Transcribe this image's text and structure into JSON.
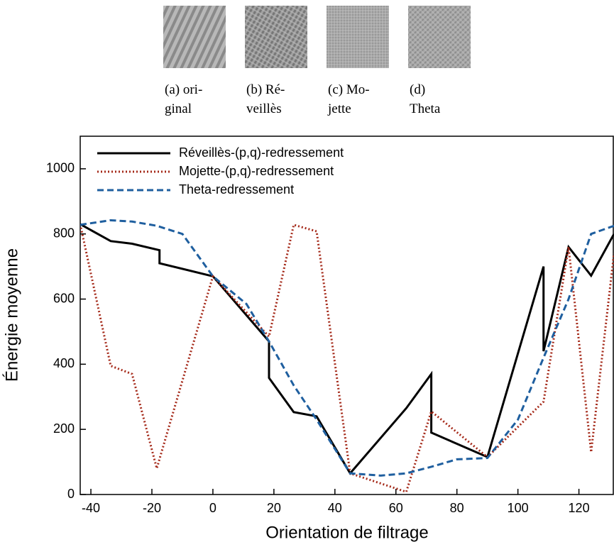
{
  "figures": [
    {
      "caption": [
        "(a) ori-",
        "ginal"
      ]
    },
    {
      "caption": [
        "(b) Ré-",
        "veillès"
      ]
    },
    {
      "caption": [
        "(c) Mo-",
        "jette"
      ]
    },
    {
      "caption": [
        "(d)",
        "Theta"
      ]
    }
  ],
  "chart_data": {
    "type": "line",
    "xlabel": "Orientation de filtrage",
    "ylabel": "Énergie moyenne",
    "xlim": [
      -43.5,
      131.5
    ],
    "ylim": [
      0,
      1100
    ],
    "xticks": [
      -40,
      -20,
      0,
      20,
      40,
      60,
      80,
      100,
      120
    ],
    "yticks": [
      0,
      200,
      400,
      600,
      800,
      1000
    ],
    "legend": "upper-left",
    "series": [
      {
        "name": "Réveillès-(p,q)-redressement",
        "color": "#000000",
        "dash": "solid",
        "x": [
          -43.5,
          -33.5,
          -26.5,
          -17.5,
          -17.5,
          0,
          18.4,
          18.4,
          26.5,
          34,
          45,
          63.4,
          71.6,
          71.6,
          90,
          108.4,
          108.4,
          116.6,
          124,
          131.5
        ],
        "values": [
          830,
          778,
          770,
          750,
          710,
          670,
          470,
          358,
          253,
          240,
          65,
          265,
          370,
          190,
          115,
          700,
          440,
          760,
          672,
          800
        ]
      },
      {
        "name": "Mojette-(p,q)-redressement",
        "color": "#a52a1a",
        "dash": "dotted",
        "x": [
          -43.5,
          -33.5,
          -26.5,
          -18.4,
          0,
          18.4,
          26.5,
          34,
          45,
          63.4,
          71.6,
          90,
          108.4,
          116.6,
          124,
          131.5
        ],
        "values": [
          830,
          395,
          370,
          80,
          670,
          485,
          828,
          808,
          65,
          8,
          255,
          115,
          285,
          760,
          130,
          740
        ]
      },
      {
        "name": "Theta-redressement",
        "color": "#1f5f9f",
        "dash": "dashed",
        "x": [
          -43.5,
          -33.5,
          -26.5,
          -18.4,
          -10,
          0,
          11,
          18.4,
          26.5,
          34,
          45,
          55,
          63.4,
          71.6,
          80,
          90,
          100,
          108.4,
          116.6,
          124,
          131.5
        ],
        "values": [
          828,
          842,
          838,
          825,
          800,
          670,
          585,
          470,
          335,
          230,
          65,
          58,
          65,
          85,
          108,
          112,
          230,
          420,
          600,
          800,
          825
        ]
      }
    ]
  }
}
